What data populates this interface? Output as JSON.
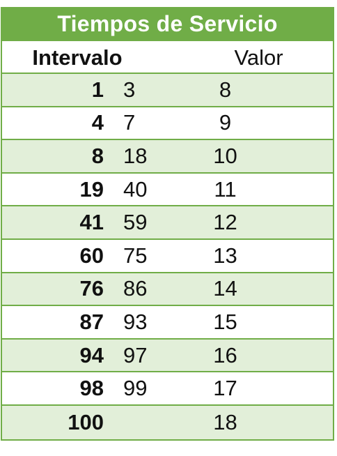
{
  "table": {
    "title": "Tiempos de Servicio",
    "headers": {
      "interval": "Intervalo",
      "value": "Valor"
    },
    "rows": [
      {
        "from": "1",
        "to": "3",
        "value": "8"
      },
      {
        "from": "4",
        "to": "7",
        "value": "9"
      },
      {
        "from": "8",
        "to": "18",
        "value": "10"
      },
      {
        "from": "19",
        "to": "40",
        "value": "11"
      },
      {
        "from": "41",
        "to": "59",
        "value": "12"
      },
      {
        "from": "60",
        "to": "75",
        "value": "13"
      },
      {
        "from": "76",
        "to": "86",
        "value": "14"
      },
      {
        "from": "87",
        "to": "93",
        "value": "15"
      },
      {
        "from": "94",
        "to": "97",
        "value": "16"
      },
      {
        "from": "98",
        "to": "99",
        "value": "17"
      },
      {
        "from": "100",
        "to": "",
        "value": "18"
      }
    ]
  },
  "colors": {
    "accent": "#70ad47",
    "row_shade": "#e2efd9",
    "title_text": "#ffffff"
  }
}
